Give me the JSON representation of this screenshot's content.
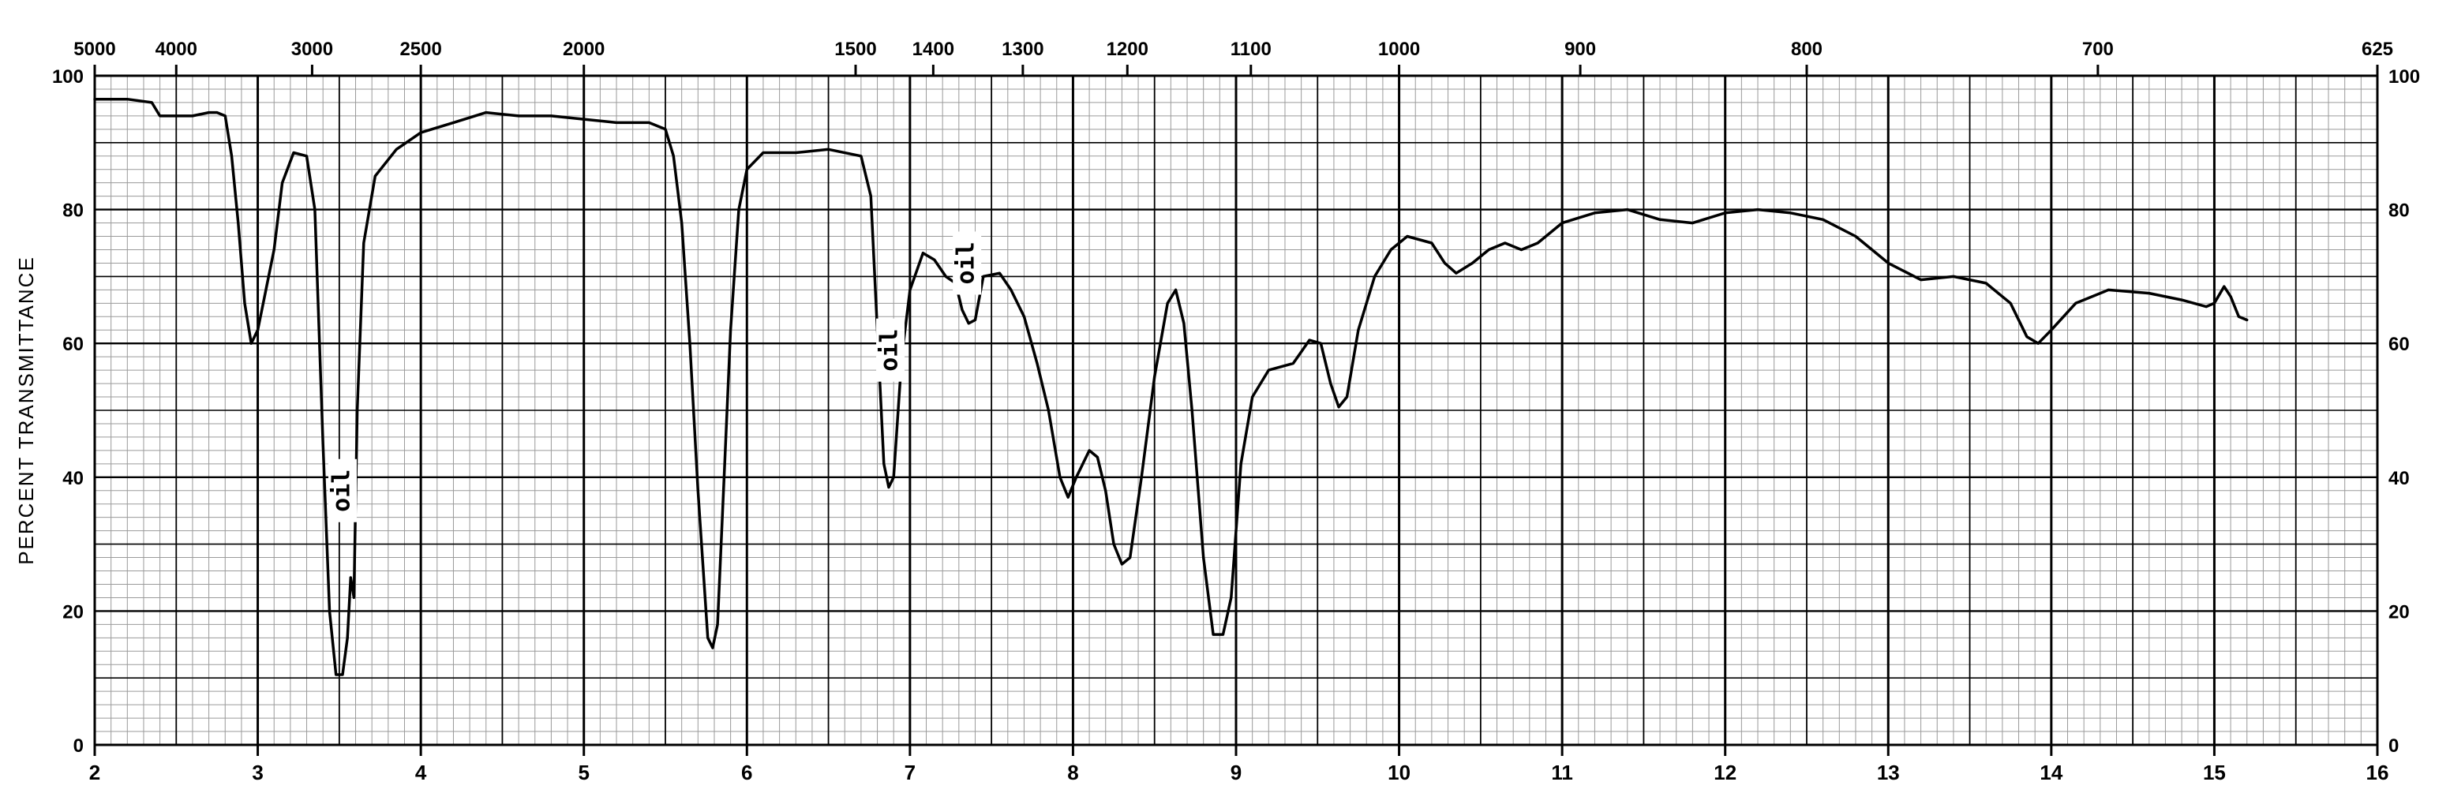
{
  "chart_data": {
    "type": "line",
    "title": "",
    "ylabel": "PERCENT TRANSMITTANCE",
    "xlabel": "",
    "xlim": [
      2,
      16
    ],
    "ylim": [
      0,
      100
    ],
    "grid": true,
    "x_ticks_um": [
      {
        "v": 2,
        "label": "2"
      },
      {
        "v": 3,
        "label": "3"
      },
      {
        "v": 4,
        "label": "4"
      },
      {
        "v": 5,
        "label": "5"
      },
      {
        "v": 6,
        "label": "6"
      },
      {
        "v": 7,
        "label": "7"
      },
      {
        "v": 8,
        "label": "8"
      },
      {
        "v": 9,
        "label": "9"
      },
      {
        "v": 10,
        "label": "10"
      },
      {
        "v": 11,
        "label": "11"
      },
      {
        "v": 12,
        "label": "12"
      },
      {
        "v": 13,
        "label": "13"
      },
      {
        "v": 14,
        "label": "14"
      },
      {
        "v": 15,
        "label": "15"
      },
      {
        "v": 16,
        "label": "16"
      }
    ],
    "top_ticks_wavenumber": [
      {
        "wn": 5000,
        "label": "5000"
      },
      {
        "wn": 4000,
        "label": "4000"
      },
      {
        "wn": 3000,
        "label": "3000"
      },
      {
        "wn": 2500,
        "label": "2500"
      },
      {
        "wn": 2000,
        "label": "2000"
      },
      {
        "wn": 1500,
        "label": "1500"
      },
      {
        "wn": 1400,
        "label": "1400"
      },
      {
        "wn": 1300,
        "label": "1300"
      },
      {
        "wn": 1200,
        "label": "1200"
      },
      {
        "wn": 1100,
        "label": "1100"
      },
      {
        "wn": 1000,
        "label": "1000"
      },
      {
        "wn": 900,
        "label": "900"
      },
      {
        "wn": 800,
        "label": "800"
      },
      {
        "wn": 700,
        "label": "700"
      },
      {
        "wn": 625,
        "label": "625"
      }
    ],
    "y_ticks": [
      {
        "v": 0,
        "label": "0"
      },
      {
        "v": 20,
        "label": "20"
      },
      {
        "v": 40,
        "label": "40"
      },
      {
        "v": 60,
        "label": "60"
      },
      {
        "v": 80,
        "label": "80"
      },
      {
        "v": 100,
        "label": "100"
      }
    ],
    "annotations": [
      {
        "x": 3.52,
        "y": 38,
        "text": "oil"
      },
      {
        "x": 6.88,
        "y": 59,
        "text": "oil"
      },
      {
        "x": 7.35,
        "y": 72,
        "text": "oil"
      }
    ],
    "series": [
      {
        "color": "#000000",
        "points": [
          [
            2.0,
            96.5
          ],
          [
            2.2,
            96.5
          ],
          [
            2.35,
            96.0
          ],
          [
            2.4,
            94.0
          ],
          [
            2.6,
            94.0
          ],
          [
            2.7,
            94.5
          ],
          [
            2.75,
            94.5
          ],
          [
            2.8,
            94.0
          ],
          [
            2.84,
            88.0
          ],
          [
            2.88,
            78.0
          ],
          [
            2.92,
            66.0
          ],
          [
            2.96,
            60.0
          ],
          [
            3.0,
            62.0
          ],
          [
            3.05,
            68.0
          ],
          [
            3.1,
            74.0
          ],
          [
            3.15,
            84.0
          ],
          [
            3.22,
            88.5
          ],
          [
            3.3,
            88.0
          ],
          [
            3.35,
            80.0
          ],
          [
            3.4,
            45.0
          ],
          [
            3.44,
            20.0
          ],
          [
            3.48,
            10.5
          ],
          [
            3.52,
            10.5
          ],
          [
            3.55,
            16.0
          ],
          [
            3.57,
            25.0
          ],
          [
            3.59,
            22.0
          ],
          [
            3.61,
            50.0
          ],
          [
            3.65,
            75.0
          ],
          [
            3.72,
            85.0
          ],
          [
            3.85,
            89.0
          ],
          [
            4.0,
            91.5
          ],
          [
            4.2,
            93.0
          ],
          [
            4.4,
            94.5
          ],
          [
            4.6,
            94.0
          ],
          [
            4.8,
            94.0
          ],
          [
            5.0,
            93.5
          ],
          [
            5.2,
            93.0
          ],
          [
            5.4,
            93.0
          ],
          [
            5.5,
            92.0
          ],
          [
            5.55,
            88.0
          ],
          [
            5.6,
            78.0
          ],
          [
            5.65,
            60.0
          ],
          [
            5.7,
            38.0
          ],
          [
            5.76,
            16.0
          ],
          [
            5.79,
            14.5
          ],
          [
            5.82,
            18.0
          ],
          [
            5.86,
            40.0
          ],
          [
            5.9,
            62.0
          ],
          [
            5.95,
            80.0
          ],
          [
            6.0,
            86.0
          ],
          [
            6.1,
            88.5
          ],
          [
            6.3,
            88.5
          ],
          [
            6.5,
            89.0
          ],
          [
            6.7,
            88.0
          ],
          [
            6.76,
            82.0
          ],
          [
            6.8,
            62.0
          ],
          [
            6.84,
            42.0
          ],
          [
            6.87,
            38.5
          ],
          [
            6.9,
            40.0
          ],
          [
            6.95,
            58.0
          ],
          [
            7.0,
            68.0
          ],
          [
            7.08,
            73.5
          ],
          [
            7.15,
            72.5
          ],
          [
            7.22,
            70.0
          ],
          [
            7.28,
            69.0
          ],
          [
            7.32,
            65.0
          ],
          [
            7.36,
            63.0
          ],
          [
            7.4,
            63.5
          ],
          [
            7.45,
            70.0
          ],
          [
            7.55,
            70.5
          ],
          [
            7.62,
            68.0
          ],
          [
            7.7,
            64.0
          ],
          [
            7.78,
            57.0
          ],
          [
            7.85,
            50.0
          ],
          [
            7.92,
            40.0
          ],
          [
            7.97,
            37.0
          ],
          [
            8.02,
            40.0
          ],
          [
            8.1,
            44.0
          ],
          [
            8.15,
            43.0
          ],
          [
            8.2,
            38.0
          ],
          [
            8.25,
            30.0
          ],
          [
            8.3,
            27.0
          ],
          [
            8.35,
            28.0
          ],
          [
            8.42,
            40.0
          ],
          [
            8.5,
            55.0
          ],
          [
            8.58,
            66.0
          ],
          [
            8.63,
            68.0
          ],
          [
            8.68,
            63.0
          ],
          [
            8.73,
            50.0
          ],
          [
            8.8,
            28.0
          ],
          [
            8.86,
            16.5
          ],
          [
            8.92,
            16.5
          ],
          [
            8.97,
            22.0
          ],
          [
            9.03,
            42.0
          ],
          [
            9.1,
            52.0
          ],
          [
            9.2,
            56.0
          ],
          [
            9.35,
            57.0
          ],
          [
            9.45,
            60.5
          ],
          [
            9.52,
            60.0
          ],
          [
            9.58,
            54.0
          ],
          [
            9.63,
            50.5
          ],
          [
            9.68,
            52.0
          ],
          [
            9.75,
            62.0
          ],
          [
            9.85,
            70.0
          ],
          [
            9.95,
            74.0
          ],
          [
            10.05,
            76.0
          ],
          [
            10.2,
            75.0
          ],
          [
            10.28,
            72.0
          ],
          [
            10.35,
            70.5
          ],
          [
            10.45,
            72.0
          ],
          [
            10.55,
            74.0
          ],
          [
            10.65,
            75.0
          ],
          [
            10.75,
            74.0
          ],
          [
            10.85,
            75.0
          ],
          [
            11.0,
            78.0
          ],
          [
            11.2,
            79.5
          ],
          [
            11.4,
            80.0
          ],
          [
            11.6,
            78.5
          ],
          [
            11.8,
            78.0
          ],
          [
            12.0,
            79.5
          ],
          [
            12.2,
            80.0
          ],
          [
            12.4,
            79.5
          ],
          [
            12.6,
            78.5
          ],
          [
            12.8,
            76.0
          ],
          [
            13.0,
            72.0
          ],
          [
            13.2,
            69.5
          ],
          [
            13.4,
            70.0
          ],
          [
            13.6,
            69.0
          ],
          [
            13.75,
            66.0
          ],
          [
            13.85,
            61.0
          ],
          [
            13.92,
            60.0
          ],
          [
            14.0,
            62.0
          ],
          [
            14.15,
            66.0
          ],
          [
            14.35,
            68.0
          ],
          [
            14.6,
            67.5
          ],
          [
            14.8,
            66.5
          ],
          [
            14.95,
            65.5
          ],
          [
            15.0,
            66.0
          ],
          [
            15.06,
            68.5
          ],
          [
            15.1,
            67.0
          ],
          [
            15.15,
            64.0
          ],
          [
            15.2,
            63.5
          ]
        ]
      }
    ]
  }
}
